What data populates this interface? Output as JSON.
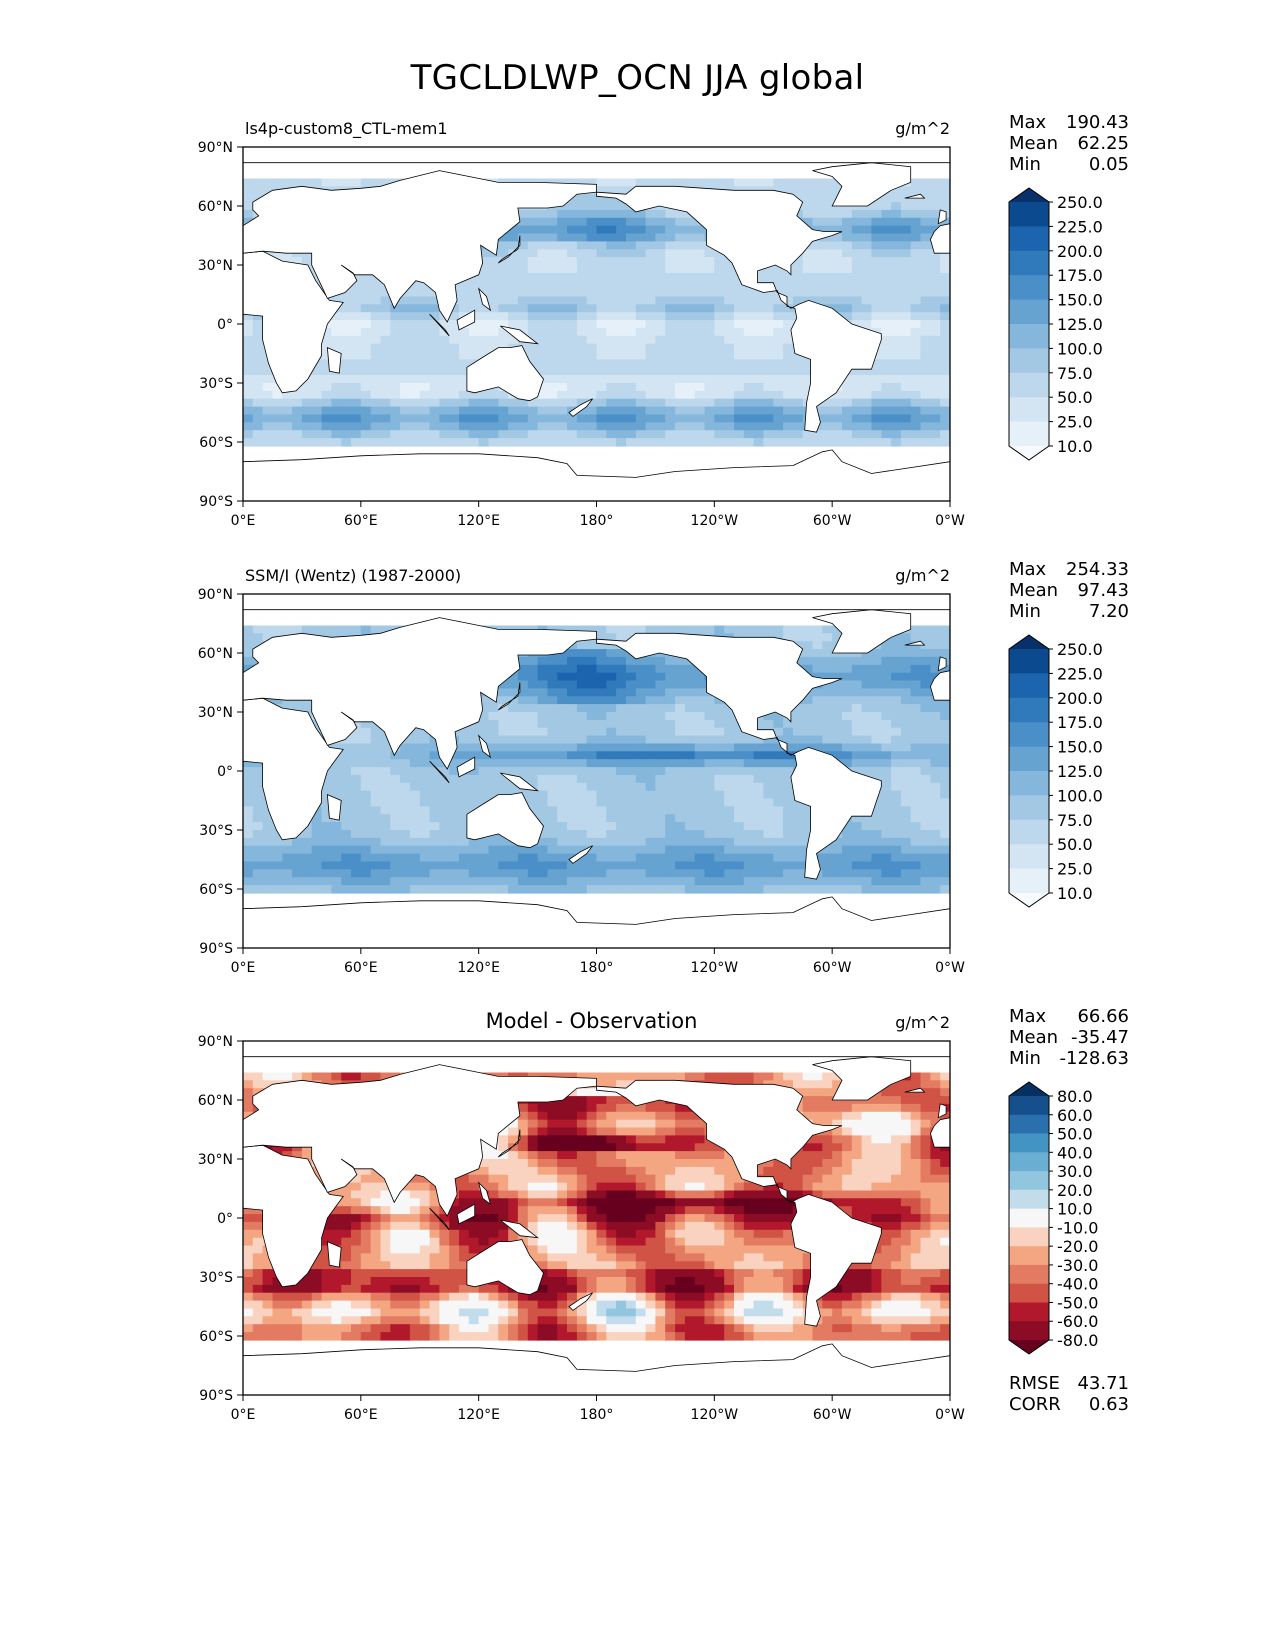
{
  "title": "TGCLDLWP_OCN JJA global",
  "chart_data": [
    {
      "type": "heatmap",
      "title": "ls4p-custom8_CTL-mem1",
      "units": "g/m^2",
      "xticks": [
        "0°E",
        "60°E",
        "120°E",
        "180°",
        "120°W",
        "60°W",
        "0°W"
      ],
      "yticks": [
        "90°N",
        "60°N",
        "30°N",
        "0°",
        "30°S",
        "60°S",
        "90°S"
      ],
      "xlim": [
        0,
        360
      ],
      "ylim": [
        -90,
        90
      ],
      "stats": [
        {
          "label": "Max",
          "value": "190.43"
        },
        {
          "label": "Mean",
          "value": "62.25"
        },
        {
          "label": "Min",
          "value": "0.05"
        }
      ],
      "colorbar": {
        "levels": [
          "250.0",
          "225.0",
          "200.0",
          "175.0",
          "150.0",
          "125.0",
          "100.0",
          "75.0",
          "50.0",
          "25.0",
          "10.0"
        ],
        "colors": [
          "#08306b",
          "#0b4a8f",
          "#1c64ad",
          "#3079bb",
          "#4a8fc7",
          "#66a3d1",
          "#84b7db",
          "#a2c8e4",
          "#bdd7ec",
          "#d3e5f3",
          "#e6f0f9",
          "#f7fbff"
        ]
      },
      "field": "model"
    },
    {
      "type": "heatmap",
      "title": "SSM/I (Wentz) (1987-2000)",
      "units": "g/m^2",
      "xticks": [
        "0°E",
        "60°E",
        "120°E",
        "180°",
        "120°W",
        "60°W",
        "0°W"
      ],
      "yticks": [
        "90°N",
        "60°N",
        "30°N",
        "0°",
        "30°S",
        "60°S",
        "90°S"
      ],
      "xlim": [
        0,
        360
      ],
      "ylim": [
        -90,
        90
      ],
      "stats": [
        {
          "label": "Max",
          "value": "254.33"
        },
        {
          "label": "Mean",
          "value": "97.43"
        },
        {
          "label": "Min",
          "value": "7.20"
        }
      ],
      "colorbar": {
        "levels": [
          "250.0",
          "225.0",
          "200.0",
          "175.0",
          "150.0",
          "125.0",
          "100.0",
          "75.0",
          "50.0",
          "25.0",
          "10.0"
        ],
        "colors": [
          "#08306b",
          "#0b4a8f",
          "#1c64ad",
          "#3079bb",
          "#4a8fc7",
          "#66a3d1",
          "#84b7db",
          "#a2c8e4",
          "#bdd7ec",
          "#d3e5f3",
          "#e6f0f9",
          "#f7fbff"
        ]
      },
      "field": "obs"
    },
    {
      "type": "heatmap",
      "title": "Model - Observation",
      "units": "g/m^2",
      "xticks": [
        "0°E",
        "60°E",
        "120°E",
        "180°",
        "120°W",
        "60°W",
        "0°W"
      ],
      "yticks": [
        "90°N",
        "60°N",
        "30°N",
        "0°",
        "30°S",
        "60°S",
        "90°S"
      ],
      "xlim": [
        0,
        360
      ],
      "ylim": [
        -90,
        90
      ],
      "stats": [
        {
          "label": "Max",
          "value": "66.66"
        },
        {
          "label": "Mean",
          "value": "-35.47"
        },
        {
          "label": "Min",
          "value": "-128.63"
        }
      ],
      "extra_stats": [
        {
          "label": "RMSE",
          "value": "43.71"
        },
        {
          "label": "CORR",
          "value": "0.63"
        }
      ],
      "colorbar": {
        "levels": [
          "80.0",
          "60.0",
          "50.0",
          "40.0",
          "30.0",
          "20.0",
          "10.0",
          "-10.0",
          "-20.0",
          "-30.0",
          "-40.0",
          "-50.0",
          "-60.0",
          "-80.0"
        ],
        "colors": [
          "#053061",
          "#154f8c",
          "#2a6fae",
          "#4393c3",
          "#6aaed3",
          "#92c5de",
          "#c2dcec",
          "#f7f7f7",
          "#f9d3c0",
          "#f4a582",
          "#e27b62",
          "#d05345",
          "#b2182b",
          "#8d0c25",
          "#67001f"
        ]
      },
      "field": "diff"
    }
  ]
}
